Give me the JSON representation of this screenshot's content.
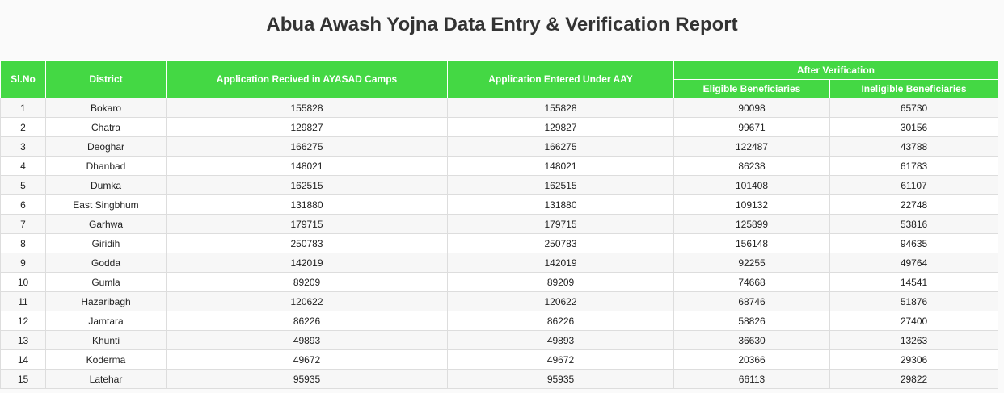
{
  "title": "Abua Awash Yojna Data Entry & Verification Report",
  "headers": {
    "sl_no": "Sl.No",
    "district": "District",
    "received": "Application Recived in AYASAD Camps",
    "entered": "Application Entered Under AAY",
    "after_verification": "After Verification",
    "eligible": "Eligible Beneficiaries",
    "ineligible": "Ineligible Beneficiaries"
  },
  "colors": {
    "header_bg": "#44d844",
    "header_text": "#ffffff"
  },
  "rows": [
    [
      "1",
      "Bokaro",
      "155828",
      "155828",
      "90098",
      "65730"
    ],
    [
      "2",
      "Chatra",
      "129827",
      "129827",
      "99671",
      "30156"
    ],
    [
      "3",
      "Deoghar",
      "166275",
      "166275",
      "122487",
      "43788"
    ],
    [
      "4",
      "Dhanbad",
      "148021",
      "148021",
      "86238",
      "61783"
    ],
    [
      "5",
      "Dumka",
      "162515",
      "162515",
      "101408",
      "61107"
    ],
    [
      "6",
      "East Singbhum",
      "131880",
      "131880",
      "109132",
      "22748"
    ],
    [
      "7",
      "Garhwa",
      "179715",
      "179715",
      "125899",
      "53816"
    ],
    [
      "8",
      "Giridih",
      "250783",
      "250783",
      "156148",
      "94635"
    ],
    [
      "9",
      "Godda",
      "142019",
      "142019",
      "92255",
      "49764"
    ],
    [
      "10",
      "Gumla",
      "89209",
      "89209",
      "74668",
      "14541"
    ],
    [
      "11",
      "Hazaribagh",
      "120622",
      "120622",
      "68746",
      "51876"
    ],
    [
      "12",
      "Jamtara",
      "86226",
      "86226",
      "58826",
      "27400"
    ],
    [
      "13",
      "Khunti",
      "49893",
      "49893",
      "36630",
      "13263"
    ],
    [
      "14",
      "Koderma",
      "49672",
      "49672",
      "20366",
      "29306"
    ],
    [
      "15",
      "Latehar",
      "95935",
      "95935",
      "66113",
      "29822"
    ]
  ]
}
